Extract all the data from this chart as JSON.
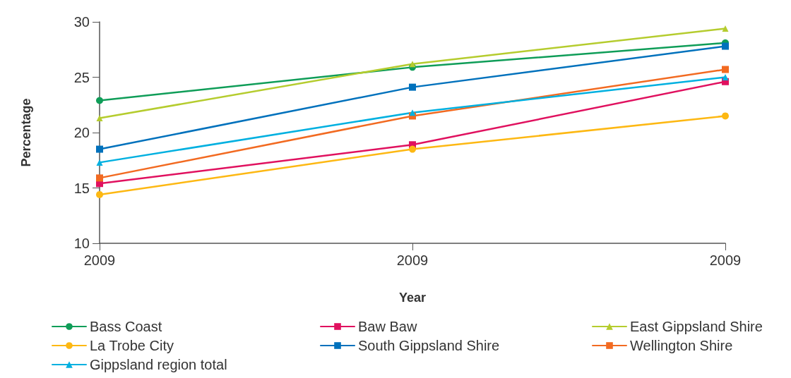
{
  "chart_data": {
    "type": "line",
    "xlabel": "Year",
    "ylabel": "Percentage",
    "categories": [
      "2009",
      "2009",
      "2009"
    ],
    "ylim": [
      10,
      30
    ],
    "yticks": [
      10,
      15,
      20,
      25,
      30
    ],
    "grid": false,
    "legend": "bottom",
    "series": [
      {
        "name": "Bass Coast",
        "color": "#0f9d58",
        "marker": "circle",
        "values": [
          22.9,
          25.9,
          28.1
        ]
      },
      {
        "name": "Baw Baw",
        "color": "#e0115f",
        "marker": "square",
        "values": [
          15.4,
          18.9,
          24.6
        ]
      },
      {
        "name": "East Gippsland Shire",
        "color": "#b5cc2e",
        "marker": "triangle",
        "values": [
          21.3,
          26.2,
          29.4
        ]
      },
      {
        "name": "La Trobe City",
        "color": "#fdb813",
        "marker": "circle",
        "values": [
          14.4,
          18.5,
          21.5
        ]
      },
      {
        "name": "South Gippsland Shire",
        "color": "#0071bc",
        "marker": "square",
        "values": [
          18.5,
          24.1,
          27.8
        ]
      },
      {
        "name": "Wellington Shire",
        "color": "#f26a21",
        "marker": "square",
        "values": [
          15.9,
          21.5,
          25.7
        ]
      },
      {
        "name": "Gippsland region total",
        "color": "#00b0e0",
        "marker": "triangle",
        "values": [
          17.3,
          21.8,
          25.0
        ]
      }
    ]
  }
}
